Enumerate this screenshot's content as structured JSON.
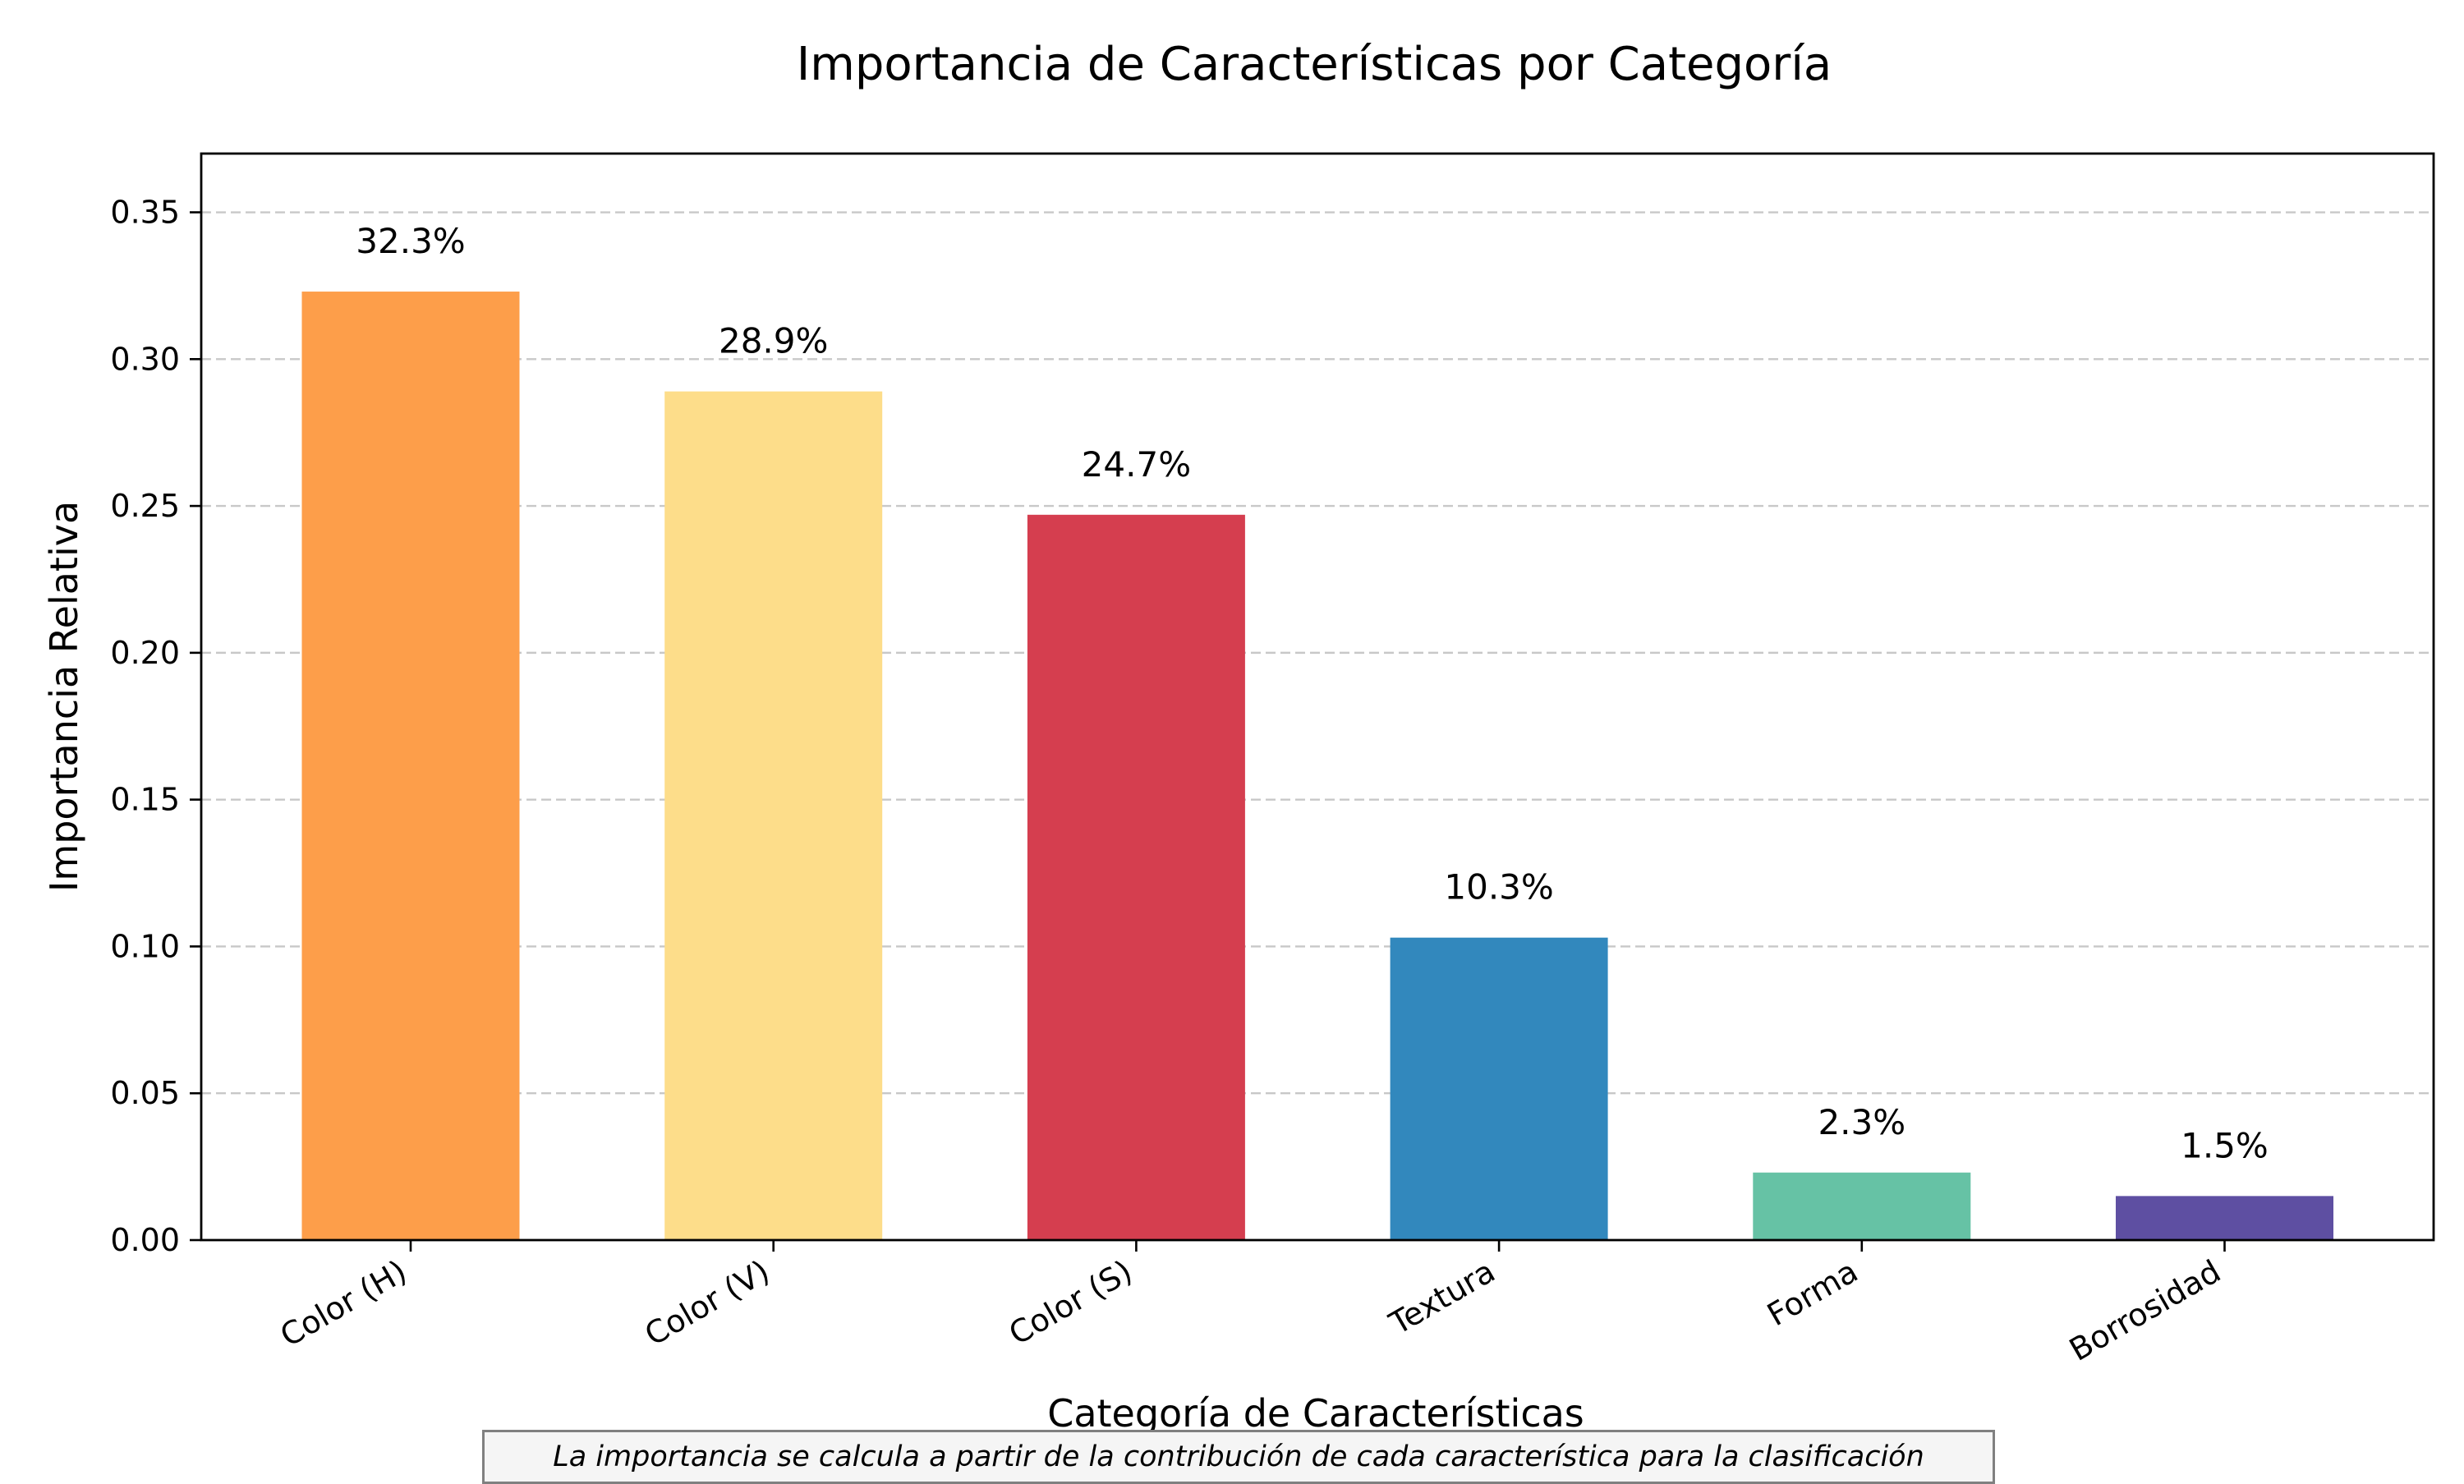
{
  "chart_data": {
    "type": "bar",
    "title": "Importancia de Características por Categoría",
    "xlabel": "Categoría de Características",
    "ylabel": "Importancia Relativa",
    "categories": [
      "Color (H)",
      "Color (V)",
      "Color (S)",
      "Textura",
      "Forma",
      "Borrosidad"
    ],
    "values": [
      0.323,
      0.289,
      0.247,
      0.103,
      0.023,
      0.015
    ],
    "data_labels": [
      "32.3%",
      "28.9%",
      "24.7%",
      "10.3%",
      "2.3%",
      "1.5%"
    ],
    "colors": [
      "#fd9e4a",
      "#fddd8a",
      "#d53e4f",
      "#3288bd",
      "#66c2a5",
      "#5e4fa2"
    ],
    "ylim": [
      0,
      0.37
    ],
    "yticks": [
      0.0,
      0.05,
      0.1,
      0.15,
      0.2,
      0.25,
      0.3,
      0.35
    ],
    "ytick_labels": [
      "0.00",
      "0.05",
      "0.10",
      "0.15",
      "0.20",
      "0.25",
      "0.30",
      "0.35"
    ],
    "grid": "y-dashed",
    "legend": "none"
  },
  "footnote": "La importancia se calcula a partir de la contribución de cada característica para la clasificación"
}
